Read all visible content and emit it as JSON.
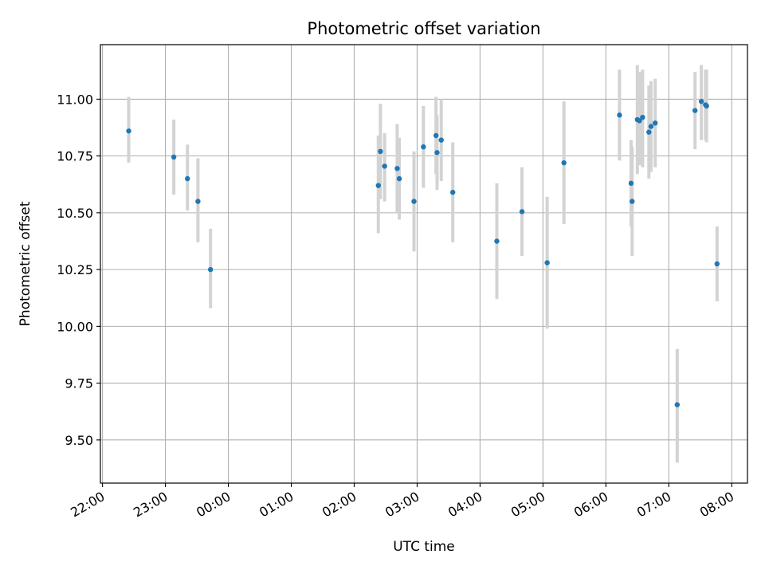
{
  "chart_data": {
    "type": "scatter",
    "title": "Photometric offset variation",
    "xlabel": "UTC time",
    "ylabel": "Photometric offset",
    "x_axis_kind": "time",
    "x_tick_labels": [
      "22:00",
      "23:00",
      "00:00",
      "01:00",
      "02:00",
      "03:00",
      "04:00",
      "05:00",
      "06:00",
      "07:00",
      "08:00"
    ],
    "y_tick_labels": [
      "9.50",
      "9.75",
      "10.00",
      "10.25",
      "10.50",
      "10.75",
      "11.00"
    ],
    "y_ticks": [
      9.5,
      9.75,
      10.0,
      10.25,
      10.5,
      10.75,
      11.0
    ],
    "xlim": [
      "21:58",
      "08:15"
    ],
    "ylim": [
      9.31,
      11.24
    ],
    "grid": true,
    "marker_color": "#1f77b4",
    "errorbar_color": "#d3d3d3",
    "series": [
      {
        "points": [
          {
            "x": "22:25",
            "y": 10.86,
            "ylo": 10.72,
            "yhi": 11.01
          },
          {
            "x": "23:08",
            "y": 10.745,
            "ylo": 10.58,
            "yhi": 10.91
          },
          {
            "x": "23:21",
            "y": 10.65,
            "ylo": 10.51,
            "yhi": 10.8
          },
          {
            "x": "23:31",
            "y": 10.55,
            "ylo": 10.37,
            "yhi": 10.74
          },
          {
            "x": "23:43",
            "y": 10.25,
            "ylo": 10.08,
            "yhi": 10.43
          },
          {
            "x": "02:23",
            "y": 10.62,
            "ylo": 10.41,
            "yhi": 10.84
          },
          {
            "x": "02:25",
            "y": 10.77,
            "ylo": 10.56,
            "yhi": 10.98
          },
          {
            "x": "02:29",
            "y": 10.705,
            "ylo": 10.55,
            "yhi": 10.85
          },
          {
            "x": "02:41",
            "y": 10.695,
            "ylo": 10.5,
            "yhi": 10.89
          },
          {
            "x": "02:43",
            "y": 10.65,
            "ylo": 10.47,
            "yhi": 10.83
          },
          {
            "x": "02:57",
            "y": 10.55,
            "ylo": 10.33,
            "yhi": 10.77
          },
          {
            "x": "03:06",
            "y": 10.79,
            "ylo": 10.61,
            "yhi": 10.97
          },
          {
            "x": "03:18",
            "y": 10.84,
            "ylo": 10.67,
            "yhi": 11.01
          },
          {
            "x": "03:19",
            "y": 10.765,
            "ylo": 10.6,
            "yhi": 10.93
          },
          {
            "x": "03:23",
            "y": 10.82,
            "ylo": 10.64,
            "yhi": 11.0
          },
          {
            "x": "03:34",
            "y": 10.59,
            "ylo": 10.37,
            "yhi": 10.81
          },
          {
            "x": "04:16",
            "y": 10.375,
            "ylo": 10.12,
            "yhi": 10.63
          },
          {
            "x": "04:40",
            "y": 10.505,
            "ylo": 10.31,
            "yhi": 10.7
          },
          {
            "x": "05:04",
            "y": 10.28,
            "ylo": 9.99,
            "yhi": 10.57
          },
          {
            "x": "05:20",
            "y": 10.72,
            "ylo": 10.45,
            "yhi": 10.99
          },
          {
            "x": "06:13",
            "y": 10.93,
            "ylo": 10.73,
            "yhi": 11.13
          },
          {
            "x": "06:24",
            "y": 10.63,
            "ylo": 10.44,
            "yhi": 10.82
          },
          {
            "x": "06:25",
            "y": 10.55,
            "ylo": 10.31,
            "yhi": 10.79
          },
          {
            "x": "06:30",
            "y": 10.91,
            "ylo": 10.67,
            "yhi": 11.15
          },
          {
            "x": "06:32",
            "y": 10.905,
            "ylo": 10.71,
            "yhi": 11.12
          },
          {
            "x": "06:35",
            "y": 10.92,
            "ylo": 10.7,
            "yhi": 11.13
          },
          {
            "x": "06:41",
            "y": 10.855,
            "ylo": 10.65,
            "yhi": 11.06
          },
          {
            "x": "06:43",
            "y": 10.88,
            "ylo": 10.68,
            "yhi": 11.08
          },
          {
            "x": "06:47",
            "y": 10.895,
            "ylo": 10.7,
            "yhi": 11.09
          },
          {
            "x": "07:08",
            "y": 9.655,
            "ylo": 9.4,
            "yhi": 9.9
          },
          {
            "x": "07:25",
            "y": 10.95,
            "ylo": 10.78,
            "yhi": 11.12
          },
          {
            "x": "07:31",
            "y": 10.99,
            "ylo": 10.82,
            "yhi": 11.15
          },
          {
            "x": "07:35",
            "y": 10.975,
            "ylo": 10.82,
            "yhi": 11.13
          },
          {
            "x": "07:36",
            "y": 10.97,
            "ylo": 10.81,
            "yhi": 11.13
          },
          {
            "x": "07:46",
            "y": 10.275,
            "ylo": 10.11,
            "yhi": 10.44
          }
        ]
      }
    ]
  }
}
